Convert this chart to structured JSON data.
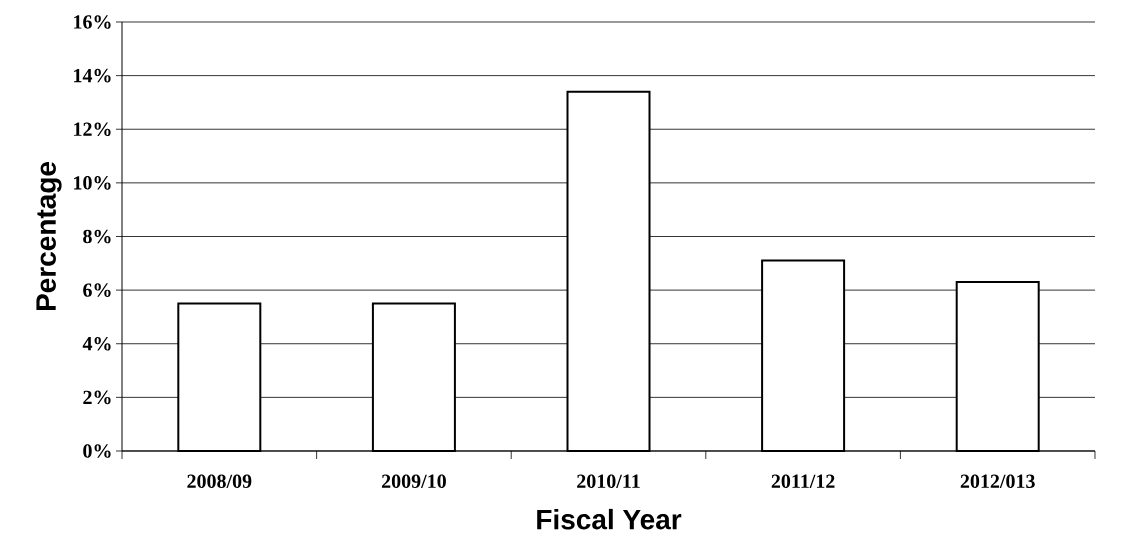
{
  "chart_data": {
    "type": "bar",
    "xlabel": "Fiscal Year",
    "ylabel": "Percentage",
    "categories": [
      "2008/09",
      "2009/10",
      "2010/11",
      "2011/12",
      "2012/013"
    ],
    "values": [
      5.5,
      5.5,
      13.4,
      7.1,
      6.3
    ],
    "color": "#ffffff",
    "ylim": [
      0,
      16
    ],
    "yticks": [
      {
        "value": 0,
        "label": "0%"
      },
      {
        "value": 2,
        "label": "2%"
      },
      {
        "value": 4,
        "label": "4%"
      },
      {
        "value": 6,
        "label": "6%"
      },
      {
        "value": 8,
        "label": "8%"
      },
      {
        "value": 10,
        "label": "10%"
      },
      {
        "value": 12,
        "label": "12%"
      },
      {
        "value": 14,
        "label": "14%"
      },
      {
        "value": 16,
        "label": "16%"
      }
    ],
    "grid": "y"
  }
}
